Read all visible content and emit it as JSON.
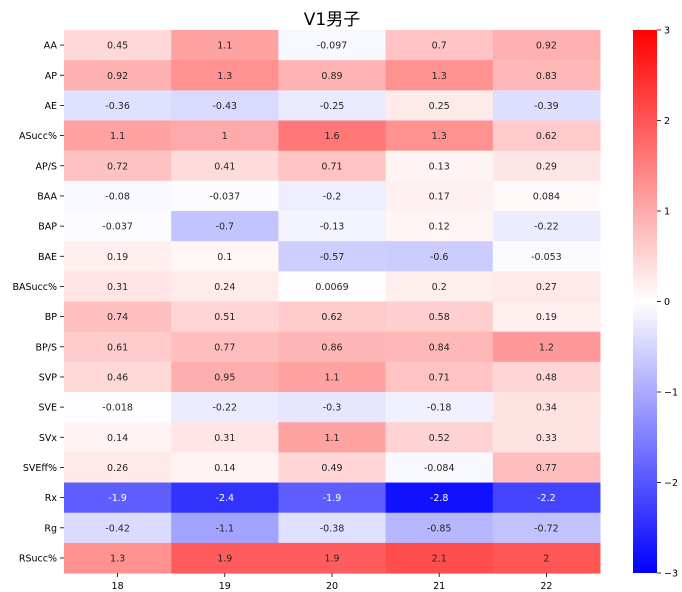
{
  "chart_data": {
    "type": "heatmap",
    "title": "V1男子",
    "xlabel": "",
    "ylabel": "",
    "x_categories": [
      "18",
      "19",
      "20",
      "21",
      "22"
    ],
    "y_categories": [
      "AA",
      "AP",
      "AE",
      "ASucc%",
      "AP/S",
      "BAA",
      "BAP",
      "BAE",
      "BASucc%",
      "BP",
      "BP/S",
      "SVP",
      "SVE",
      "SVx",
      "SVEff%",
      "Rx",
      "Rg",
      "RSucc%"
    ],
    "values": [
      [
        0.45,
        1.1,
        -0.097,
        0.7,
        0.92
      ],
      [
        0.92,
        1.3,
        0.89,
        1.3,
        0.83
      ],
      [
        -0.36,
        -0.43,
        -0.25,
        0.25,
        -0.39
      ],
      [
        1.1,
        1,
        1.6,
        1.3,
        0.62
      ],
      [
        0.72,
        0.41,
        0.71,
        0.13,
        0.29
      ],
      [
        -0.08,
        -0.037,
        -0.2,
        0.17,
        0.084
      ],
      [
        -0.037,
        -0.7,
        -0.13,
        0.12,
        -0.22
      ],
      [
        0.19,
        0.1,
        -0.57,
        -0.6,
        -0.053
      ],
      [
        0.31,
        0.24,
        0.0069,
        0.2,
        0.27
      ],
      [
        0.74,
        0.51,
        0.62,
        0.58,
        0.19
      ],
      [
        0.61,
        0.77,
        0.86,
        0.84,
        1.2
      ],
      [
        0.46,
        0.95,
        1.1,
        0.71,
        0.48
      ],
      [
        -0.018,
        -0.22,
        -0.3,
        -0.18,
        0.34
      ],
      [
        0.14,
        0.31,
        1.1,
        0.52,
        0.33
      ],
      [
        0.26,
        0.14,
        0.49,
        -0.084,
        0.77
      ],
      [
        -1.9,
        -2.4,
        -1.9,
        -2.8,
        -2.2
      ],
      [
        -0.42,
        -1.1,
        -0.38,
        -0.85,
        -0.72
      ],
      [
        1.3,
        1.9,
        1.9,
        2.1,
        2
      ]
    ],
    "colorbar": {
      "min": -3,
      "max": 3,
      "ticks": [
        -3,
        -2,
        -1,
        0,
        1,
        2,
        3
      ],
      "tick_labels": [
        "−3",
        "−2",
        "−1",
        "0",
        "1",
        "2",
        "3"
      ],
      "colormap": "bwr",
      "low_color": "#0000ff",
      "mid_color": "#ffffff",
      "high_color": "#ff0000"
    },
    "annotated": true,
    "grid": false
  }
}
